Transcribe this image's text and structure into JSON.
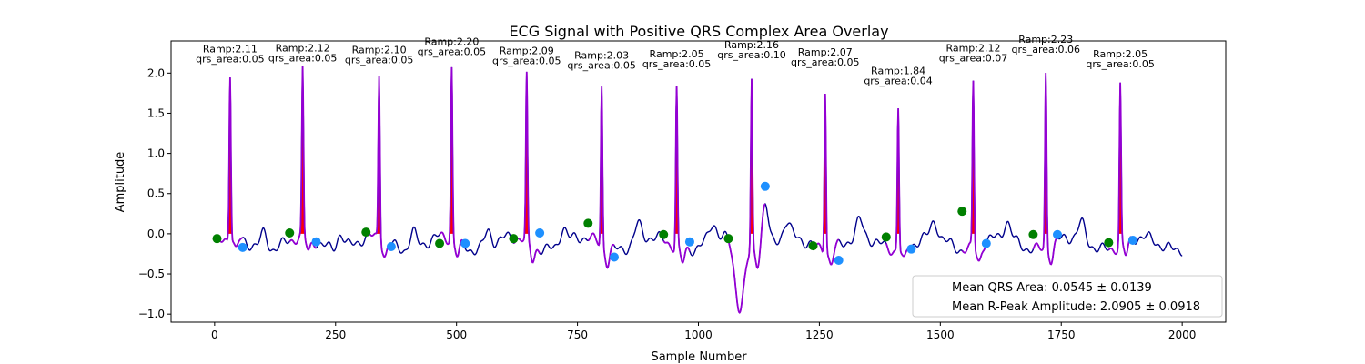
{
  "chart_data": {
    "type": "line",
    "title": "ECG Signal with Positive QRS Complex Area Overlay",
    "xlabel": "Sample Number",
    "ylabel": "Amplitude",
    "xlim": [
      -90,
      2090
    ],
    "ylim": [
      -1.1,
      2.4
    ],
    "x_ticks": [
      0,
      250,
      500,
      750,
      1000,
      1250,
      1500,
      1750,
      2000
    ],
    "y_ticks": [
      -1.0,
      -0.5,
      0.0,
      0.5,
      1.0,
      1.5,
      2.0
    ],
    "x_tick_labels": [
      "0",
      "250",
      "500",
      "750",
      "1000",
      "1250",
      "1500",
      "1750",
      "2000"
    ],
    "y_tick_labels": [
      "−1.0",
      "−0.5",
      "0.0",
      "0.5",
      "1.0",
      "1.5",
      "2.0"
    ],
    "grid": false,
    "legend_position": "lower-right",
    "legend": [
      "Mean QRS Area: 0.0545 ± 0.0139",
      "Mean R-Peak Amplitude: 2.0905 ± 0.0918"
    ],
    "colors": {
      "signal": "#00008b",
      "qrs_segment": "#9400d3",
      "qrs_area_fill": "#ff0000",
      "onset_marker": "#008000",
      "offset_marker": "#1e90ff"
    },
    "beats": [
      {
        "r_x": 32,
        "r_amp": 2.11,
        "ramp_label": "Ramp:2.11",
        "area_label": "qrs_area:0.05",
        "onset": [
          5,
          -0.06
        ],
        "offset": [
          58,
          -0.17
        ]
      },
      {
        "r_x": 182,
        "r_amp": 2.12,
        "ramp_label": "Ramp:2.12",
        "area_label": "qrs_area:0.05",
        "onset": [
          155,
          0.01
        ],
        "offset": [
          210,
          -0.1
        ]
      },
      {
        "r_x": 340,
        "r_amp": 2.1,
        "ramp_label": "Ramp:2.10",
        "area_label": "qrs_area:0.05",
        "onset": [
          313,
          0.02
        ],
        "offset": [
          365,
          -0.16
        ]
      },
      {
        "r_x": 490,
        "r_amp": 2.2,
        "ramp_label": "Ramp:2.20",
        "area_label": "qrs_area:0.05",
        "onset": [
          465,
          -0.12
        ],
        "offset": [
          518,
          -0.12
        ]
      },
      {
        "r_x": 645,
        "r_amp": 2.09,
        "ramp_label": "Ramp:2.09",
        "area_label": "qrs_area:0.05",
        "onset": [
          618,
          -0.06
        ],
        "offset": [
          672,
          0.01
        ]
      },
      {
        "r_x": 800,
        "r_amp": 2.03,
        "ramp_label": "Ramp:2.03",
        "area_label": "qrs_area:0.05",
        "onset": [
          772,
          0.13
        ],
        "offset": [
          826,
          -0.29
        ]
      },
      {
        "r_x": 955,
        "r_amp": 2.05,
        "ramp_label": "Ramp:2.05",
        "area_label": "qrs_area:0.05",
        "onset": [
          928,
          -0.01
        ],
        "offset": [
          982,
          -0.1
        ]
      },
      {
        "r_x": 1110,
        "r_amp": 2.16,
        "ramp_label": "Ramp:2.16",
        "area_label": "qrs_area:0.10",
        "onset": [
          1062,
          -0.06
        ],
        "offset": [
          1138,
          0.59
        ]
      },
      {
        "r_x": 1262,
        "r_amp": 2.07,
        "ramp_label": "Ramp:2.07",
        "area_label": "qrs_area:0.05",
        "onset": [
          1237,
          -0.15
        ],
        "offset": [
          1290,
          -0.33
        ]
      },
      {
        "r_x": 1413,
        "r_amp": 1.84,
        "ramp_label": "Ramp:1.84",
        "area_label": "qrs_area:0.04",
        "onset": [
          1388,
          -0.04
        ],
        "offset": [
          1440,
          -0.19
        ]
      },
      {
        "r_x": 1568,
        "r_amp": 2.12,
        "ramp_label": "Ramp:2.12",
        "area_label": "qrs_area:0.07",
        "onset": [
          1545,
          0.28
        ],
        "offset": [
          1595,
          -0.12
        ]
      },
      {
        "r_x": 1718,
        "r_amp": 2.23,
        "ramp_label": "Ramp:2.23",
        "area_label": "qrs_area:0.06",
        "onset": [
          1692,
          -0.01
        ],
        "offset": [
          1742,
          -0.01
        ]
      },
      {
        "r_x": 1872,
        "r_amp": 2.05,
        "ramp_label": "Ramp:2.05",
        "area_label": "qrs_area:0.05",
        "onset": [
          1848,
          -0.11
        ],
        "offset": [
          1898,
          -0.08
        ]
      }
    ]
  }
}
